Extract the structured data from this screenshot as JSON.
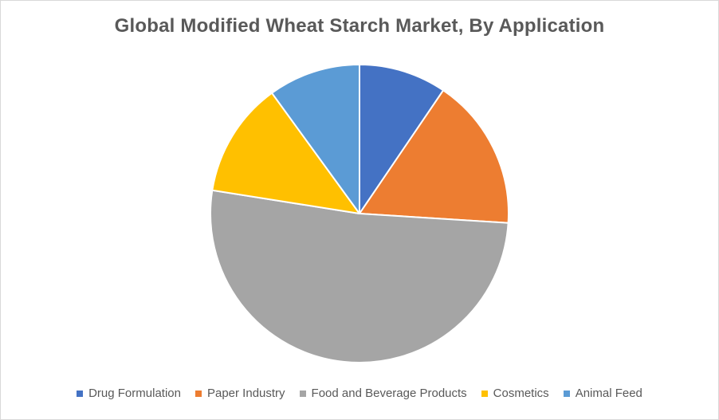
{
  "chart_data": {
    "type": "pie",
    "title": "Global Modified Wheat Starch Market, By Application",
    "categories": [
      "Drug Formulation",
      "Paper Industry",
      "Food and Beverage Products",
      "Cosmetics",
      "Animal Feed"
    ],
    "values": [
      9.5,
      16.5,
      51.5,
      12.5,
      10
    ],
    "colors": [
      "#4472c4",
      "#ed7d31",
      "#a5a5a5",
      "#ffc000",
      "#5b9bd5"
    ],
    "start_angle_deg": 0,
    "direction": "clockwise",
    "legend_position": "bottom",
    "data_labels": false
  }
}
